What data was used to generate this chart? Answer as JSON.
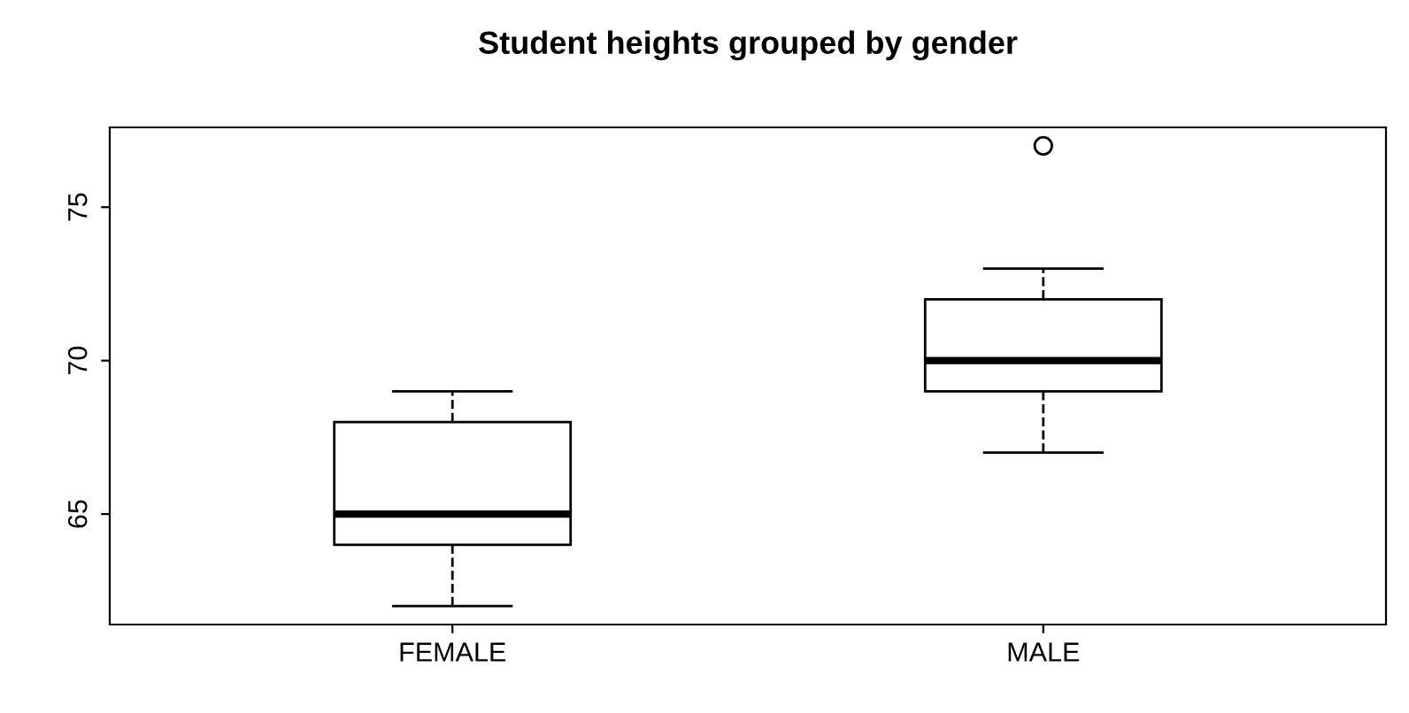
{
  "chart_data": {
    "type": "box",
    "title": "Student heights grouped by gender",
    "categories": [
      "FEMALE",
      "MALE"
    ],
    "boxes": [
      {
        "low": 62,
        "q1": 64,
        "median": 65,
        "q3": 68,
        "high": 69
      },
      {
        "low": 67,
        "q1": 69,
        "median": 70,
        "q3": 72,
        "high": 73,
        "outliers": [
          77
        ]
      }
    ],
    "ylim": [
      61.4,
      77.6
    ],
    "yticks": [
      65,
      70,
      75
    ],
    "grid": false,
    "line_style": "dashed"
  }
}
